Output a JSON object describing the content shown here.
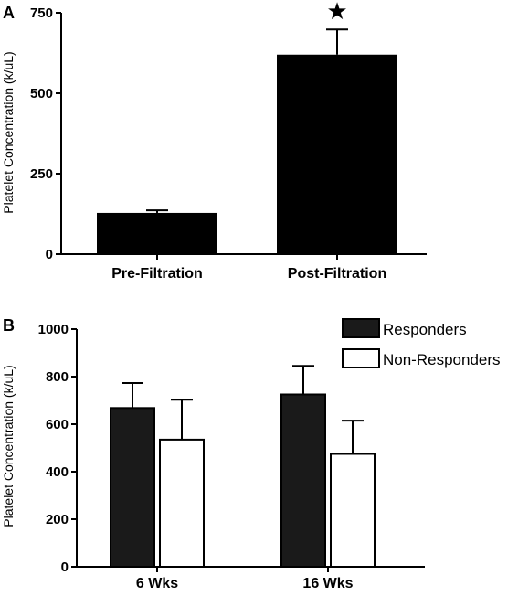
{
  "chart_data": [
    {
      "panel": "A",
      "type": "bar",
      "ylabel": "Platelet Concentration (k/uL)",
      "ylim": [
        0,
        750
      ],
      "yticks": [
        0,
        250,
        500,
        750
      ],
      "categories": [
        "Pre-Filtration",
        "Post-Filtration"
      ],
      "values": [
        128,
        620
      ],
      "errors": [
        8,
        78
      ],
      "annotations": [
        {
          "category": "Post-Filtration",
          "symbol": "★"
        }
      ],
      "colors": {
        "bar": "#000000"
      }
    },
    {
      "panel": "B",
      "type": "bar",
      "ylabel": "Platelet Concentration (k/uL)",
      "ylim": [
        0,
        1000
      ],
      "yticks": [
        0,
        200,
        400,
        600,
        800,
        1000
      ],
      "categories": [
        "6 Wks",
        "16 Wks"
      ],
      "series": [
        {
          "name": "Responders",
          "values": [
            668,
            725
          ],
          "errors": [
            105,
            120
          ],
          "fill": "#1a1a1a"
        },
        {
          "name": "Non-Responders",
          "values": [
            535,
            475
          ],
          "errors": [
            168,
            140
          ],
          "fill": "#ffffff"
        }
      ],
      "legend_position": "top-right"
    }
  ]
}
